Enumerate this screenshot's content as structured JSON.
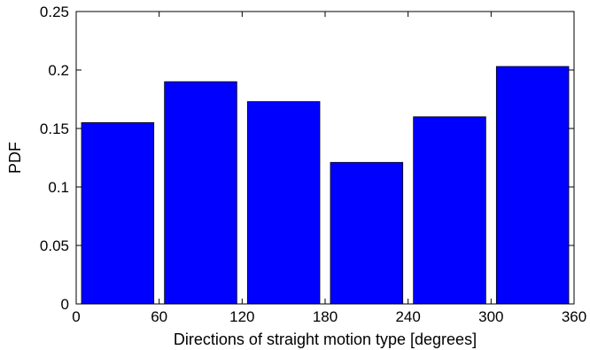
{
  "chart_data": {
    "type": "bar",
    "title": "",
    "xlabel": "Directions of straight motion type [degrees]",
    "ylabel": "PDF",
    "bars": [
      {
        "x_start": 0,
        "x_end": 60,
        "value": 0.155
      },
      {
        "x_start": 60,
        "x_end": 120,
        "value": 0.19
      },
      {
        "x_start": 120,
        "x_end": 180,
        "value": 0.173
      },
      {
        "x_start": 180,
        "x_end": 240,
        "value": 0.121
      },
      {
        "x_start": 240,
        "x_end": 300,
        "value": 0.16
      },
      {
        "x_start": 300,
        "x_end": 360,
        "value": 0.203
      }
    ],
    "xlim": [
      0,
      360
    ],
    "ylim": [
      0,
      0.25
    ],
    "xticks": [
      0,
      60,
      120,
      180,
      240,
      300,
      360
    ],
    "xtick_labels": [
      "0",
      "60",
      "120",
      "180",
      "240",
      "300",
      "360"
    ],
    "yticks": [
      0,
      0.05,
      0.1,
      0.15,
      0.2,
      0.25
    ],
    "ytick_labels": [
      "0",
      "0.05",
      "0.1",
      "0.15",
      "0.2",
      "0.25"
    ],
    "grid": false,
    "bar_color": "#0000ff"
  }
}
